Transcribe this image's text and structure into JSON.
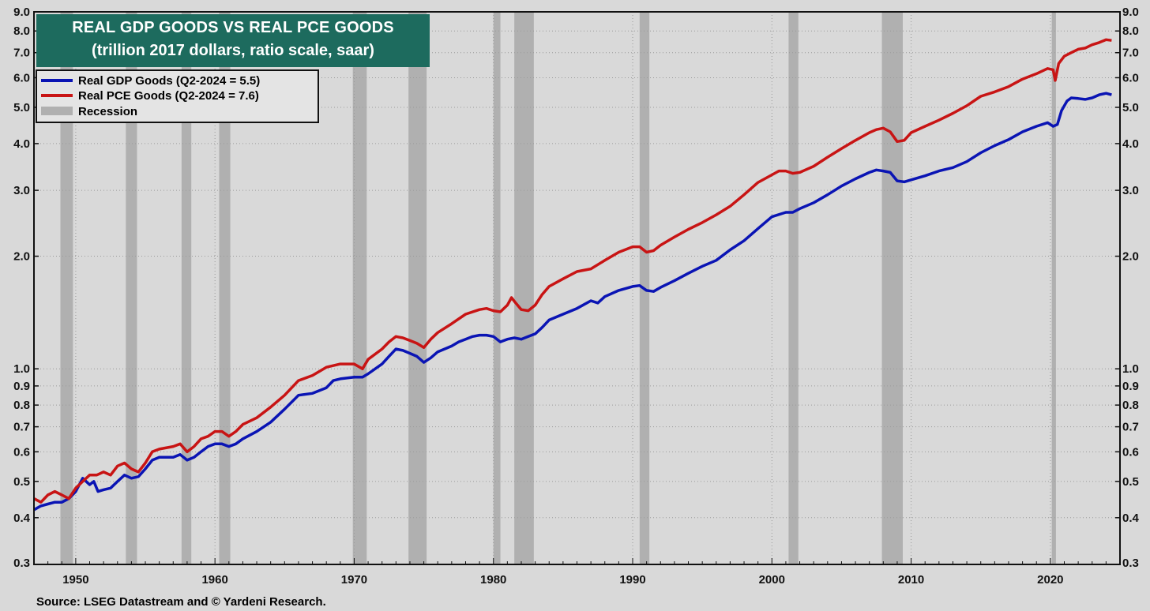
{
  "chart_data": {
    "type": "line",
    "title": "REAL GDP GOODS VS REAL PCE GOODS",
    "subtitle": "(trillion 2017 dollars, ratio scale, saar)",
    "yscale": "log",
    "ylim": [
      0.3,
      9.0
    ],
    "xlim": [
      1947,
      2025
    ],
    "y_ticks": [
      {
        "v": 0.3,
        "label": "0.3"
      },
      {
        "v": 0.4,
        "label": "0.4"
      },
      {
        "v": 0.5,
        "label": "0.5"
      },
      {
        "v": 0.6,
        "label": "0.6"
      },
      {
        "v": 0.7,
        "label": "0.7"
      },
      {
        "v": 0.8,
        "label": "0.8"
      },
      {
        "v": 0.9,
        "label": "0.9"
      },
      {
        "v": 1.0,
        "label": "1.0"
      },
      {
        "v": 2.0,
        "label": "2.0"
      },
      {
        "v": 3.0,
        "label": "3.0"
      },
      {
        "v": 4.0,
        "label": "4.0"
      },
      {
        "v": 5.0,
        "label": "5.0"
      },
      {
        "v": 6.0,
        "label": "6.0"
      },
      {
        "v": 7.0,
        "label": "7.0"
      },
      {
        "v": 8.0,
        "label": "8.0"
      },
      {
        "v": 9.0,
        "label": "9.0"
      }
    ],
    "x_ticks": [
      {
        "v": 1950,
        "label": "1950"
      },
      {
        "v": 1960,
        "label": "1960"
      },
      {
        "v": 1970,
        "label": "1970"
      },
      {
        "v": 1980,
        "label": "1980"
      },
      {
        "v": 1990,
        "label": "1990"
      },
      {
        "v": 2000,
        "label": "2000"
      },
      {
        "v": 2010,
        "label": "2010"
      },
      {
        "v": 2020,
        "label": "2020"
      }
    ],
    "recessions": [
      [
        1948.9,
        1949.8
      ],
      [
        1953.6,
        1954.4
      ],
      [
        1957.6,
        1958.3
      ],
      [
        1960.3,
        1961.1
      ],
      [
        1969.9,
        1970.9
      ],
      [
        1973.9,
        1975.2
      ],
      [
        1980.0,
        1980.5
      ],
      [
        1981.5,
        1982.9
      ],
      [
        1990.5,
        1991.2
      ],
      [
        2001.2,
        2001.9
      ],
      [
        2007.9,
        2009.4
      ],
      [
        2020.1,
        2020.4
      ]
    ],
    "series": [
      {
        "name": "Real GDP Goods",
        "legend": "Real GDP Goods (Q2-2024 = 5.5)",
        "color": "#0a14b4",
        "points": [
          [
            1947.0,
            0.42
          ],
          [
            1947.5,
            0.43
          ],
          [
            1948.0,
            0.435
          ],
          [
            1948.5,
            0.44
          ],
          [
            1949.0,
            0.44
          ],
          [
            1949.5,
            0.45
          ],
          [
            1950.0,
            0.47
          ],
          [
            1950.5,
            0.51
          ],
          [
            1951.0,
            0.49
          ],
          [
            1951.3,
            0.5
          ],
          [
            1951.6,
            0.47
          ],
          [
            1952.0,
            0.475
          ],
          [
            1952.5,
            0.48
          ],
          [
            1953.0,
            0.5
          ],
          [
            1953.5,
            0.52
          ],
          [
            1954.0,
            0.51
          ],
          [
            1954.5,
            0.515
          ],
          [
            1955.0,
            0.54
          ],
          [
            1955.5,
            0.57
          ],
          [
            1956.0,
            0.58
          ],
          [
            1957.0,
            0.58
          ],
          [
            1957.5,
            0.59
          ],
          [
            1958.0,
            0.57
          ],
          [
            1958.5,
            0.58
          ],
          [
            1959.0,
            0.6
          ],
          [
            1959.5,
            0.62
          ],
          [
            1960.0,
            0.63
          ],
          [
            1960.5,
            0.63
          ],
          [
            1961.0,
            0.62
          ],
          [
            1961.5,
            0.63
          ],
          [
            1962.0,
            0.65
          ],
          [
            1963.0,
            0.68
          ],
          [
            1964.0,
            0.72
          ],
          [
            1965.0,
            0.78
          ],
          [
            1966.0,
            0.85
          ],
          [
            1967.0,
            0.86
          ],
          [
            1968.0,
            0.89
          ],
          [
            1968.5,
            0.93
          ],
          [
            1969.0,
            0.94
          ],
          [
            1970.0,
            0.95
          ],
          [
            1970.6,
            0.95
          ],
          [
            1971.0,
            0.97
          ],
          [
            1972.0,
            1.03
          ],
          [
            1972.5,
            1.08
          ],
          [
            1973.0,
            1.13
          ],
          [
            1973.5,
            1.12
          ],
          [
            1974.0,
            1.1
          ],
          [
            1974.5,
            1.08
          ],
          [
            1975.0,
            1.04
          ],
          [
            1975.5,
            1.07
          ],
          [
            1976.0,
            1.11
          ],
          [
            1977.0,
            1.15
          ],
          [
            1977.5,
            1.18
          ],
          [
            1978.0,
            1.2
          ],
          [
            1978.5,
            1.22
          ],
          [
            1979.0,
            1.23
          ],
          [
            1979.5,
            1.23
          ],
          [
            1980.0,
            1.22
          ],
          [
            1980.5,
            1.18
          ],
          [
            1981.0,
            1.2
          ],
          [
            1981.5,
            1.21
          ],
          [
            1982.0,
            1.2
          ],
          [
            1982.5,
            1.22
          ],
          [
            1983.0,
            1.24
          ],
          [
            1983.5,
            1.29
          ],
          [
            1984.0,
            1.35
          ],
          [
            1985.0,
            1.4
          ],
          [
            1986.0,
            1.45
          ],
          [
            1987.0,
            1.52
          ],
          [
            1987.5,
            1.5
          ],
          [
            1988.0,
            1.56
          ],
          [
            1989.0,
            1.62
          ],
          [
            1990.0,
            1.66
          ],
          [
            1990.5,
            1.67
          ],
          [
            1991.0,
            1.62
          ],
          [
            1991.5,
            1.61
          ],
          [
            1992.0,
            1.65
          ],
          [
            1993.0,
            1.72
          ],
          [
            1994.0,
            1.8
          ],
          [
            1995.0,
            1.88
          ],
          [
            1996.0,
            1.95
          ],
          [
            1997.0,
            2.08
          ],
          [
            1998.0,
            2.2
          ],
          [
            1999.0,
            2.37
          ],
          [
            2000.0,
            2.55
          ],
          [
            2001.0,
            2.62
          ],
          [
            2001.5,
            2.62
          ],
          [
            2002.0,
            2.68
          ],
          [
            2003.0,
            2.78
          ],
          [
            2004.0,
            2.92
          ],
          [
            2005.0,
            3.08
          ],
          [
            2006.0,
            3.22
          ],
          [
            2007.0,
            3.35
          ],
          [
            2007.5,
            3.4
          ],
          [
            2008.0,
            3.38
          ],
          [
            2008.5,
            3.35
          ],
          [
            2009.0,
            3.18
          ],
          [
            2009.5,
            3.16
          ],
          [
            2010.0,
            3.2
          ],
          [
            2011.0,
            3.28
          ],
          [
            2012.0,
            3.38
          ],
          [
            2013.0,
            3.45
          ],
          [
            2014.0,
            3.58
          ],
          [
            2015.0,
            3.78
          ],
          [
            2016.0,
            3.95
          ],
          [
            2017.0,
            4.1
          ],
          [
            2018.0,
            4.3
          ],
          [
            2019.0,
            4.45
          ],
          [
            2019.8,
            4.55
          ],
          [
            2020.2,
            4.45
          ],
          [
            2020.5,
            4.5
          ],
          [
            2020.8,
            4.9
          ],
          [
            2021.2,
            5.2
          ],
          [
            2021.5,
            5.3
          ],
          [
            2022.0,
            5.28
          ],
          [
            2022.5,
            5.25
          ],
          [
            2023.0,
            5.3
          ],
          [
            2023.5,
            5.4
          ],
          [
            2024.0,
            5.45
          ],
          [
            2024.4,
            5.4
          ]
        ]
      },
      {
        "name": "Real PCE Goods",
        "legend": "Real PCE Goods (Q2-2024 = 7.6)",
        "color": "#c81414",
        "points": [
          [
            1947.0,
            0.45
          ],
          [
            1947.5,
            0.44
          ],
          [
            1948.0,
            0.46
          ],
          [
            1948.5,
            0.47
          ],
          [
            1949.0,
            0.46
          ],
          [
            1949.5,
            0.45
          ],
          [
            1950.0,
            0.48
          ],
          [
            1950.5,
            0.5
          ],
          [
            1951.0,
            0.52
          ],
          [
            1951.5,
            0.52
          ],
          [
            1952.0,
            0.53
          ],
          [
            1952.5,
            0.52
          ],
          [
            1953.0,
            0.55
          ],
          [
            1953.5,
            0.56
          ],
          [
            1954.0,
            0.54
          ],
          [
            1954.5,
            0.53
          ],
          [
            1955.0,
            0.56
          ],
          [
            1955.5,
            0.6
          ],
          [
            1956.0,
            0.61
          ],
          [
            1957.0,
            0.62
          ],
          [
            1957.5,
            0.63
          ],
          [
            1958.0,
            0.6
          ],
          [
            1958.5,
            0.62
          ],
          [
            1959.0,
            0.65
          ],
          [
            1959.5,
            0.66
          ],
          [
            1960.0,
            0.68
          ],
          [
            1960.5,
            0.68
          ],
          [
            1961.0,
            0.66
          ],
          [
            1961.5,
            0.68
          ],
          [
            1962.0,
            0.71
          ],
          [
            1963.0,
            0.74
          ],
          [
            1964.0,
            0.79
          ],
          [
            1965.0,
            0.85
          ],
          [
            1966.0,
            0.93
          ],
          [
            1967.0,
            0.96
          ],
          [
            1968.0,
            1.01
          ],
          [
            1969.0,
            1.03
          ],
          [
            1970.0,
            1.03
          ],
          [
            1970.6,
            1.0
          ],
          [
            1971.0,
            1.06
          ],
          [
            1972.0,
            1.13
          ],
          [
            1972.5,
            1.18
          ],
          [
            1973.0,
            1.22
          ],
          [
            1973.5,
            1.21
          ],
          [
            1974.0,
            1.19
          ],
          [
            1974.5,
            1.17
          ],
          [
            1975.0,
            1.14
          ],
          [
            1975.5,
            1.2
          ],
          [
            1976.0,
            1.25
          ],
          [
            1977.0,
            1.32
          ],
          [
            1978.0,
            1.4
          ],
          [
            1979.0,
            1.44
          ],
          [
            1979.5,
            1.45
          ],
          [
            1980.0,
            1.43
          ],
          [
            1980.5,
            1.42
          ],
          [
            1981.0,
            1.48
          ],
          [
            1981.3,
            1.55
          ],
          [
            1981.6,
            1.5
          ],
          [
            1982.0,
            1.44
          ],
          [
            1982.5,
            1.43
          ],
          [
            1983.0,
            1.48
          ],
          [
            1983.5,
            1.58
          ],
          [
            1984.0,
            1.66
          ],
          [
            1985.0,
            1.74
          ],
          [
            1986.0,
            1.82
          ],
          [
            1987.0,
            1.85
          ],
          [
            1988.0,
            1.95
          ],
          [
            1989.0,
            2.05
          ],
          [
            1990.0,
            2.12
          ],
          [
            1990.5,
            2.12
          ],
          [
            1991.0,
            2.05
          ],
          [
            1991.5,
            2.07
          ],
          [
            1992.0,
            2.14
          ],
          [
            1993.0,
            2.25
          ],
          [
            1994.0,
            2.36
          ],
          [
            1995.0,
            2.46
          ],
          [
            1996.0,
            2.58
          ],
          [
            1997.0,
            2.72
          ],
          [
            1998.0,
            2.92
          ],
          [
            1999.0,
            3.15
          ],
          [
            2000.0,
            3.3
          ],
          [
            2000.5,
            3.38
          ],
          [
            2001.0,
            3.38
          ],
          [
            2001.5,
            3.33
          ],
          [
            2002.0,
            3.35
          ],
          [
            2003.0,
            3.48
          ],
          [
            2004.0,
            3.68
          ],
          [
            2005.0,
            3.88
          ],
          [
            2006.0,
            4.08
          ],
          [
            2007.0,
            4.28
          ],
          [
            2007.5,
            4.36
          ],
          [
            2008.0,
            4.4
          ],
          [
            2008.5,
            4.3
          ],
          [
            2009.0,
            4.05
          ],
          [
            2009.5,
            4.08
          ],
          [
            2010.0,
            4.28
          ],
          [
            2011.0,
            4.45
          ],
          [
            2012.0,
            4.62
          ],
          [
            2013.0,
            4.82
          ],
          [
            2014.0,
            5.05
          ],
          [
            2015.0,
            5.35
          ],
          [
            2016.0,
            5.5
          ],
          [
            2017.0,
            5.68
          ],
          [
            2018.0,
            5.95
          ],
          [
            2019.0,
            6.15
          ],
          [
            2019.8,
            6.35
          ],
          [
            2020.2,
            6.3
          ],
          [
            2020.35,
            5.9
          ],
          [
            2020.6,
            6.55
          ],
          [
            2021.0,
            6.85
          ],
          [
            2021.5,
            7.0
          ],
          [
            2022.0,
            7.15
          ],
          [
            2022.5,
            7.2
          ],
          [
            2023.0,
            7.35
          ],
          [
            2023.5,
            7.45
          ],
          [
            2024.0,
            7.58
          ],
          [
            2024.4,
            7.55
          ]
        ]
      }
    ],
    "legend_recession": "Recession",
    "legend_placement": "top-left",
    "grid": true,
    "recession_color": "#b0b0b0"
  },
  "source": "Source: LSEG Datastream and © Yardeni Research."
}
